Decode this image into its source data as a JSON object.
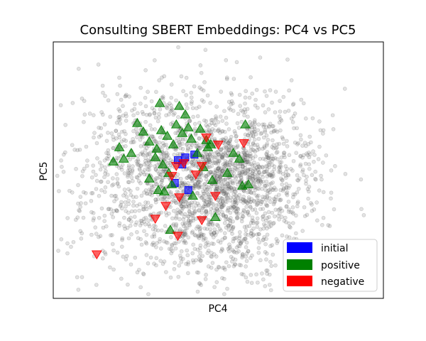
{
  "chart_data": {
    "type": "scatter",
    "title": "Consulting SBERT Embeddings: PC4 vs PC5",
    "xlabel": "PC4",
    "ylabel": "PC5",
    "xticks": [],
    "yticks": [],
    "grid": false,
    "legend_position": "lower-right",
    "background_cloud": {
      "marker": "circle",
      "color": "#7f7f7f",
      "approx_count": 2500,
      "description_visible": false
    },
    "series": [
      {
        "name": "initial",
        "marker": "square",
        "color": "#0000ff",
        "points": [
          [
            -0.7,
            0.7
          ],
          [
            -0.4,
            0.4
          ],
          [
            -0.2,
            0.9
          ],
          [
            0.4,
            1.1
          ],
          [
            -0.9,
            -0.9
          ],
          [
            0.0,
            -1.4
          ]
        ]
      },
      {
        "name": "positive",
        "marker": "triangle-up",
        "color": "#008000",
        "points": [
          [
            -5.0,
            0.6
          ],
          [
            -4.6,
            1.6
          ],
          [
            -4.3,
            0.8
          ],
          [
            -3.8,
            1.2
          ],
          [
            -3.4,
            3.3
          ],
          [
            -3.0,
            2.7
          ],
          [
            -2.6,
            2.0
          ],
          [
            -2.1,
            1.5
          ],
          [
            -1.8,
            2.8
          ],
          [
            -2.2,
            0.9
          ],
          [
            -2.6,
            -0.6
          ],
          [
            -2.0,
            -1.4
          ],
          [
            -1.6,
            -1.5
          ],
          [
            -1.7,
            0.4
          ],
          [
            -1.3,
            -0.2
          ],
          [
            -1.4,
            2.4
          ],
          [
            -1.0,
            1.8
          ],
          [
            -0.6,
            4.5
          ],
          [
            -0.2,
            3.9
          ],
          [
            -0.4,
            2.6
          ],
          [
            0.0,
            3.0
          ],
          [
            0.2,
            2.2
          ],
          [
            -0.8,
            3.2
          ],
          [
            -1.9,
            4.7
          ],
          [
            0.8,
            2.9
          ],
          [
            1.2,
            2.1
          ],
          [
            1.5,
            1.8
          ],
          [
            1.0,
            0.2
          ],
          [
            1.6,
            -0.7
          ],
          [
            2.6,
            -0.2
          ],
          [
            3.0,
            1.2
          ],
          [
            3.4,
            0.8
          ],
          [
            3.6,
            -1.1
          ],
          [
            4.0,
            -1.0
          ],
          [
            3.8,
            3.2
          ],
          [
            1.3,
            1.6
          ],
          [
            -1.1,
            -1.0
          ],
          [
            0.3,
            -1.8
          ],
          [
            1.8,
            -3.3
          ],
          [
            -1.2,
            -4.2
          ],
          [
            0.6,
            1.2
          ]
        ]
      },
      {
        "name": "negative",
        "marker": "triangle-down",
        "color": "#ff0000",
        "points": [
          [
            -0.8,
            0.3
          ],
          [
            -1.1,
            -0.4
          ],
          [
            -0.6,
            -1.9
          ],
          [
            -1.5,
            -2.5
          ],
          [
            -2.2,
            -3.4
          ],
          [
            -0.3,
            0.5
          ],
          [
            0.5,
            -0.3
          ],
          [
            0.9,
            0.3
          ],
          [
            1.2,
            2.3
          ],
          [
            3.7,
            1.9
          ],
          [
            1.8,
            -1.8
          ],
          [
            0.9,
            -3.5
          ],
          [
            -0.7,
            -4.6
          ],
          [
            -6.1,
            -5.9
          ],
          [
            2.0,
            1.8
          ]
        ]
      }
    ]
  }
}
